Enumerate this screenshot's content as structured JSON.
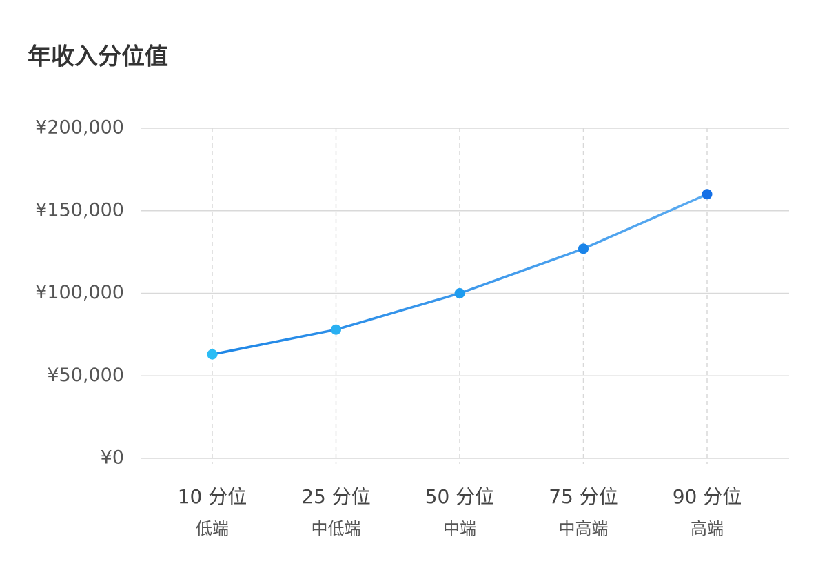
{
  "chart_data": {
    "type": "line",
    "title": "年收入分位值",
    "categories": [
      "10 分位",
      "25 分位",
      "50 分位",
      "75 分位",
      "90 分位"
    ],
    "category_sublabels": [
      "低端",
      "中低端",
      "中端",
      "中高端",
      "高端"
    ],
    "series": [
      {
        "color": "#2a8ae8",
        "marker_colors": [
          "#2bbcf5",
          "#2ab0f2",
          "#1e9cef",
          "#1a84e9",
          "#1570e6"
        ],
        "values": [
          63000,
          78000,
          100000,
          127000,
          160000
        ]
      }
    ],
    "ylim": [
      0,
      200000
    ],
    "yticks": [
      {
        "value": 0,
        "label": "¥0"
      },
      {
        "value": 50000,
        "label": "¥50,000"
      },
      {
        "value": 100000,
        "label": "¥100,000"
      },
      {
        "value": 150000,
        "label": "¥150,000"
      },
      {
        "value": 200000,
        "label": "¥200,000"
      }
    ],
    "grid": true
  }
}
